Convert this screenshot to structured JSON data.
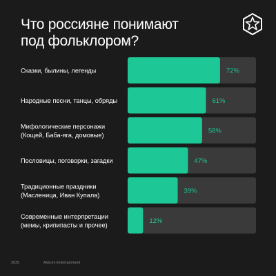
{
  "header": {
    "title_line1": "Что россияне понимают",
    "title_line2": "под фольклором?"
  },
  "logo": {
    "icon": "star-in-hexagon-icon"
  },
  "footer": {
    "year": "2025",
    "company": "Astrum Entertainment"
  },
  "colors": {
    "background": "#1b1b1b",
    "track": "#3a3a3a",
    "bar": "#1ec796",
    "value_text": "#1ec796",
    "label_text": "#ffffff"
  },
  "chart_data": {
    "type": "bar",
    "orientation": "horizontal",
    "title": "Что россияне понимают под фольклором?",
    "xlim": [
      0,
      100
    ],
    "unit": "%",
    "categories": [
      [
        "Сказки, былины, легенды"
      ],
      [
        "Народные песни, танцы, обряды"
      ],
      [
        "Мифологические персонажи",
        "(Кощей, Баба-яга, домовые)"
      ],
      [
        "Пословицы, поговорки, загадки"
      ],
      [
        "Традиционные праздники",
        "(Масленица, Иван Купала)"
      ],
      [
        "Современные интерпретации",
        "(мемы, крипипасты и прочее)"
      ]
    ],
    "values": [
      72,
      61,
      58,
      47,
      39,
      12
    ],
    "value_labels": [
      "72%",
      "61%",
      "58%",
      "47%",
      "39%",
      "12%"
    ]
  }
}
